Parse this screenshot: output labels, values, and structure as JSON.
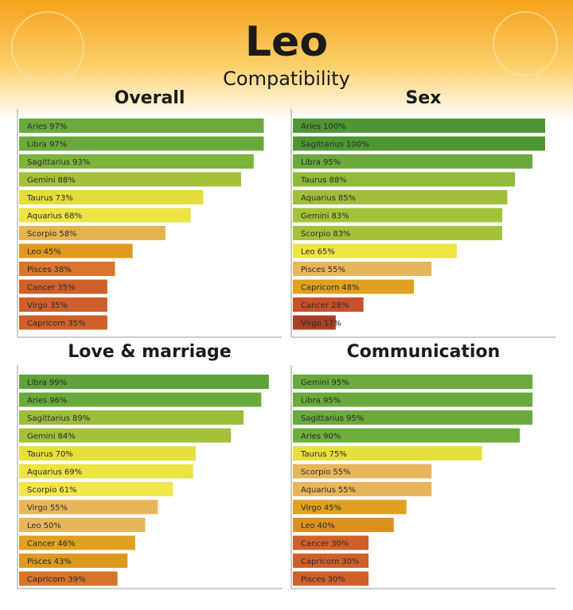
{
  "header": {
    "title": "Leo",
    "subtitle": "Compatibility"
  },
  "chart_data": [
    {
      "type": "bar",
      "title": "Overall",
      "categories": [
        "Aries",
        "Libra",
        "Sagittarius",
        "Gemini",
        "Taurus",
        "Aquarius",
        "Scorpio",
        "Leo",
        "Pisces",
        "Cancer",
        "Virgo",
        "Capricorn"
      ],
      "values": [
        97,
        97,
        93,
        88,
        73,
        68,
        58,
        45,
        38,
        35,
        35,
        35
      ],
      "value_labels": [
        "97%",
        "97%",
        "93%",
        "88%",
        "73%",
        "68%",
        "58%",
        "45%",
        "38%",
        "35%",
        "35%",
        "35%"
      ],
      "colors": [
        "#6aaa3c",
        "#6aaa3c",
        "#7db43a",
        "#a3c23a",
        "#e2df3a",
        "#ece345",
        "#e6b44e",
        "#de9a1e",
        "#d9762a",
        "#d0602a",
        "#d0602a",
        "#d0602a"
      ],
      "xlim": [
        0,
        100
      ]
    },
    {
      "type": "bar",
      "title": "Sex",
      "categories": [
        "Aries",
        "Sagittarius",
        "Libra",
        "Taurus",
        "Aquarius",
        "Gemini",
        "Scorpio",
        "Leo",
        "Pisces",
        "Capricorn",
        "Cancer",
        "Virgo"
      ],
      "values": [
        100,
        100,
        95,
        88,
        85,
        83,
        83,
        65,
        55,
        48,
        28,
        17
      ],
      "value_labels": [
        "100%",
        "100%",
        "95%",
        "88%",
        "85%",
        "83%",
        "83%",
        "65%",
        "55%",
        "48%",
        "28%",
        "17%"
      ],
      "colors": [
        "#4f9634",
        "#4f9634",
        "#6aaa3c",
        "#8fba3a",
        "#9fbf3a",
        "#a3c23a",
        "#a3c23a",
        "#eee347",
        "#e8b65a",
        "#e0a020",
        "#c8502a",
        "#a84024"
      ],
      "xlim": [
        0,
        100
      ]
    },
    {
      "type": "bar",
      "title": "Love & marriage",
      "categories": [
        "Libra",
        "Aries",
        "Sagittarius",
        "Gemini",
        "Taurus",
        "Aquarius",
        "Scorpio",
        "Virgo",
        "Leo",
        "Cancer",
        "Pisces",
        "Capricorn"
      ],
      "values": [
        99,
        96,
        89,
        84,
        70,
        69,
        61,
        55,
        50,
        46,
        43,
        39
      ],
      "value_labels": [
        "99%",
        "96%",
        "89%",
        "84%",
        "70%",
        "69%",
        "61%",
        "55%",
        "50%",
        "46%",
        "43%",
        "39%"
      ],
      "colors": [
        "#5fa23a",
        "#6aaa3c",
        "#9bbe3a",
        "#a3c23a",
        "#e6e03a",
        "#ece345",
        "#f2e64a",
        "#e8b65a",
        "#e8b65a",
        "#e0a020",
        "#dd9a20",
        "#d7742a"
      ],
      "xlim": [
        0,
        100
      ]
    },
    {
      "type": "bar",
      "title": "Communication",
      "categories": [
        "Gemini",
        "Libra",
        "Sagittarius",
        "Aries",
        "Taurus",
        "Scorpio",
        "Aquarius",
        "Virgo",
        "Leo",
        "Cancer",
        "Capricorn",
        "Pisces"
      ],
      "values": [
        95,
        95,
        95,
        90,
        75,
        55,
        55,
        45,
        40,
        30,
        30,
        30
      ],
      "value_labels": [
        "95%",
        "95%",
        "95%",
        "90%",
        "75%",
        "55%",
        "55%",
        "45%",
        "40%",
        "30%",
        "30%",
        "30%"
      ],
      "colors": [
        "#6aaa3c",
        "#6aaa3c",
        "#6aaa3c",
        "#6fae3c",
        "#e6e03a",
        "#e8b65a",
        "#e8b65a",
        "#e0a020",
        "#dd9020",
        "#d0602a",
        "#d0602a",
        "#d0602a"
      ],
      "xlim": [
        0,
        100
      ]
    }
  ]
}
